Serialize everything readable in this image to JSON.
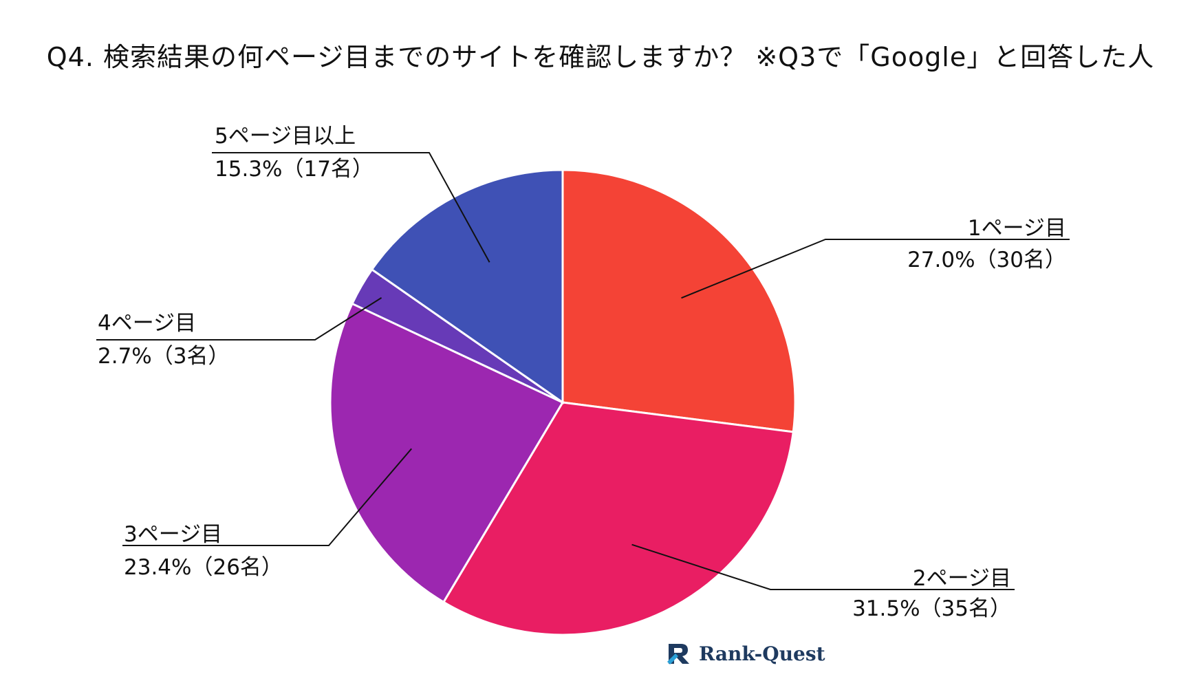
{
  "chart_data": {
    "type": "pie",
    "title": "Q4. 検索結果の何ページ目までのサイトを確認しますか？ ※Q3で「Google」と回答した人",
    "slices": [
      {
        "name": "1ページ目",
        "percent": 27.0,
        "value_text": "27.0%（30名）",
        "count": 30,
        "color": "#f44336"
      },
      {
        "name": "2ページ目",
        "percent": 31.5,
        "value_text": "31.5%（35名）",
        "count": 35,
        "color": "#e91e63"
      },
      {
        "name": "3ページ目",
        "percent": 23.4,
        "value_text": "23.4%（26名）",
        "count": 26,
        "color": "#9c27b0"
      },
      {
        "name": "4ページ目",
        "percent": 2.7,
        "value_text": "2.7%（3名）",
        "count": 3,
        "color": "#673ab7"
      },
      {
        "name": "5ページ目以上",
        "percent": 15.3,
        "value_text": "15.3%（17名）",
        "count": 17,
        "color": "#3f51b5"
      }
    ]
  },
  "logo": {
    "text": "Rank-Quest",
    "icon": "rank-quest-logo-icon",
    "color": "#1e3a5f",
    "accent": "#2a9fd6"
  }
}
